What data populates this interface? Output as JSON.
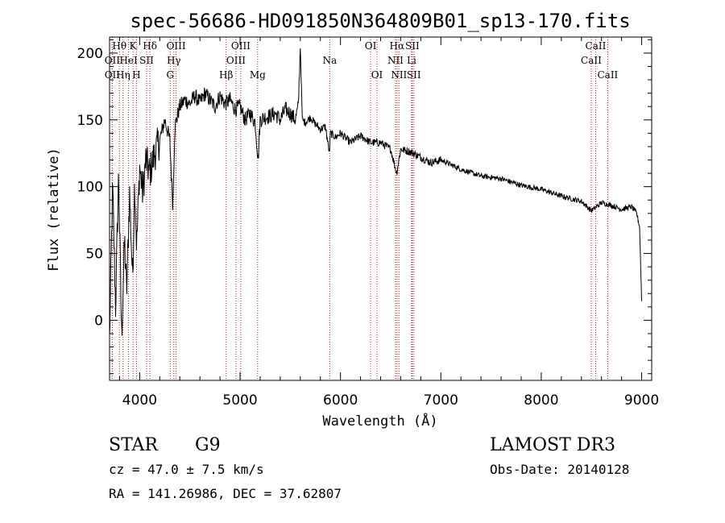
{
  "chart_data": {
    "type": "line",
    "title": "spec-56686-HD091850N364809B01_sp13-170.fits",
    "xlabel": "Wavelength (Å)",
    "ylabel": "Flux (relative)",
    "xlim": [
      3700,
      9100
    ],
    "ylim": [
      -45,
      212
    ],
    "xticks": [
      4000,
      5000,
      6000,
      7000,
      8000,
      9000
    ],
    "yticks": [
      0,
      50,
      100,
      150,
      200
    ],
    "series": [
      {
        "name": "flux",
        "x": [
          3700,
          3730,
          3760,
          3790,
          3820,
          3850,
          3870,
          3900,
          3930,
          3950,
          3970,
          4000,
          4030,
          4060,
          4100,
          4150,
          4200,
          4250,
          4300,
          4330,
          4350,
          4400,
          4450,
          4500,
          4550,
          4600,
          4650,
          4700,
          4750,
          4800,
          4850,
          4900,
          4950,
          5000,
          5050,
          5100,
          5150,
          5180,
          5200,
          5250,
          5300,
          5350,
          5400,
          5450,
          5500,
          5550,
          5580,
          5600,
          5620,
          5650,
          5700,
          5750,
          5800,
          5850,
          5890,
          5900,
          5950,
          6000,
          6100,
          6200,
          6300,
          6400,
          6500,
          6560,
          6600,
          6700,
          6800,
          6900,
          7000,
          7200,
          7400,
          7600,
          7800,
          8000,
          8200,
          8400,
          8500,
          8600,
          8700,
          8800,
          8900,
          8950,
          8980,
          9000
        ],
        "y": [
          -15,
          100,
          10,
          110,
          -12,
          60,
          20,
          95,
          30,
          105,
          55,
          115,
          95,
          120,
          110,
          125,
          135,
          150,
          135,
          85,
          145,
          160,
          165,
          162,
          168,
          163,
          170,
          165,
          160,
          168,
          162,
          165,
          158,
          160,
          150,
          155,
          148,
          120,
          150,
          152,
          153,
          155,
          150,
          158,
          155,
          150,
          160,
          205,
          150,
          148,
          152,
          147,
          143,
          145,
          125,
          140,
          137,
          140,
          133,
          138,
          133,
          133,
          128,
          110,
          128,
          126,
          122,
          118,
          120,
          113,
          108,
          106,
          101,
          98,
          93,
          89,
          82,
          88,
          86,
          83,
          85,
          80,
          70,
          15
        ]
      }
    ],
    "spectral_lines": [
      {
        "label": "Hθ",
        "wl": 3798,
        "row": 0
      },
      {
        "label": "OII",
        "wl": 3727,
        "row": 1
      },
      {
        "label": "OII",
        "wl": 3727,
        "row": 2
      },
      {
        "label": "K",
        "wl": 3934,
        "row": 0
      },
      {
        "label": "HeI",
        "wl": 3889,
        "row": 1
      },
      {
        "label": "Hη",
        "wl": 3835,
        "row": 2
      },
      {
        "label": "Hδ",
        "wl": 4102,
        "row": 0
      },
      {
        "label": "SII",
        "wl": 4069,
        "row": 1
      },
      {
        "label": "H",
        "wl": 3968,
        "row": 2
      },
      {
        "label": "OIII",
        "wl": 4363,
        "row": 0
      },
      {
        "label": "Hγ",
        "wl": 4340,
        "row": 1
      },
      {
        "label": "G",
        "wl": 4304,
        "row": 2
      },
      {
        "label": "OIII",
        "wl": 5007,
        "row": 0
      },
      {
        "label": "OIII",
        "wl": 4959,
        "row": 1
      },
      {
        "label": "Hβ",
        "wl": 4861,
        "row": 2
      },
      {
        "label": "Mg",
        "wl": 5175,
        "row": 2
      },
      {
        "label": "Na",
        "wl": 5893,
        "row": 1
      },
      {
        "label": "OI",
        "wl": 6300,
        "row": 0
      },
      {
        "label": "OI",
        "wl": 6364,
        "row": 2
      },
      {
        "label": "Hα",
        "wl": 6563,
        "row": 0
      },
      {
        "label": "SII",
        "wl": 6716,
        "row": 0
      },
      {
        "label": "NII",
        "wl": 6548,
        "row": 1
      },
      {
        "label": "Li",
        "wl": 6708,
        "row": 1
      },
      {
        "label": "NII",
        "wl": 6583,
        "row": 2
      },
      {
        "label": "SII",
        "wl": 6731,
        "row": 2
      },
      {
        "label": "CaII",
        "wl": 8542,
        "row": 0
      },
      {
        "label": "CaII",
        "wl": 8498,
        "row": 1
      },
      {
        "label": "CaII",
        "wl": 8662,
        "row": 2
      }
    ]
  },
  "info": {
    "object_type": "STAR",
    "subclass": "G9",
    "redshift": "cz = 47.0 ± 7.5 km/s",
    "coords": "RA = 141.26986, DEC =  37.62807",
    "survey": "LAMOST DR3",
    "obs_date": "Obs-Date: 20140128"
  },
  "colors": {
    "line": "#000000",
    "marker": "#b22222"
  }
}
